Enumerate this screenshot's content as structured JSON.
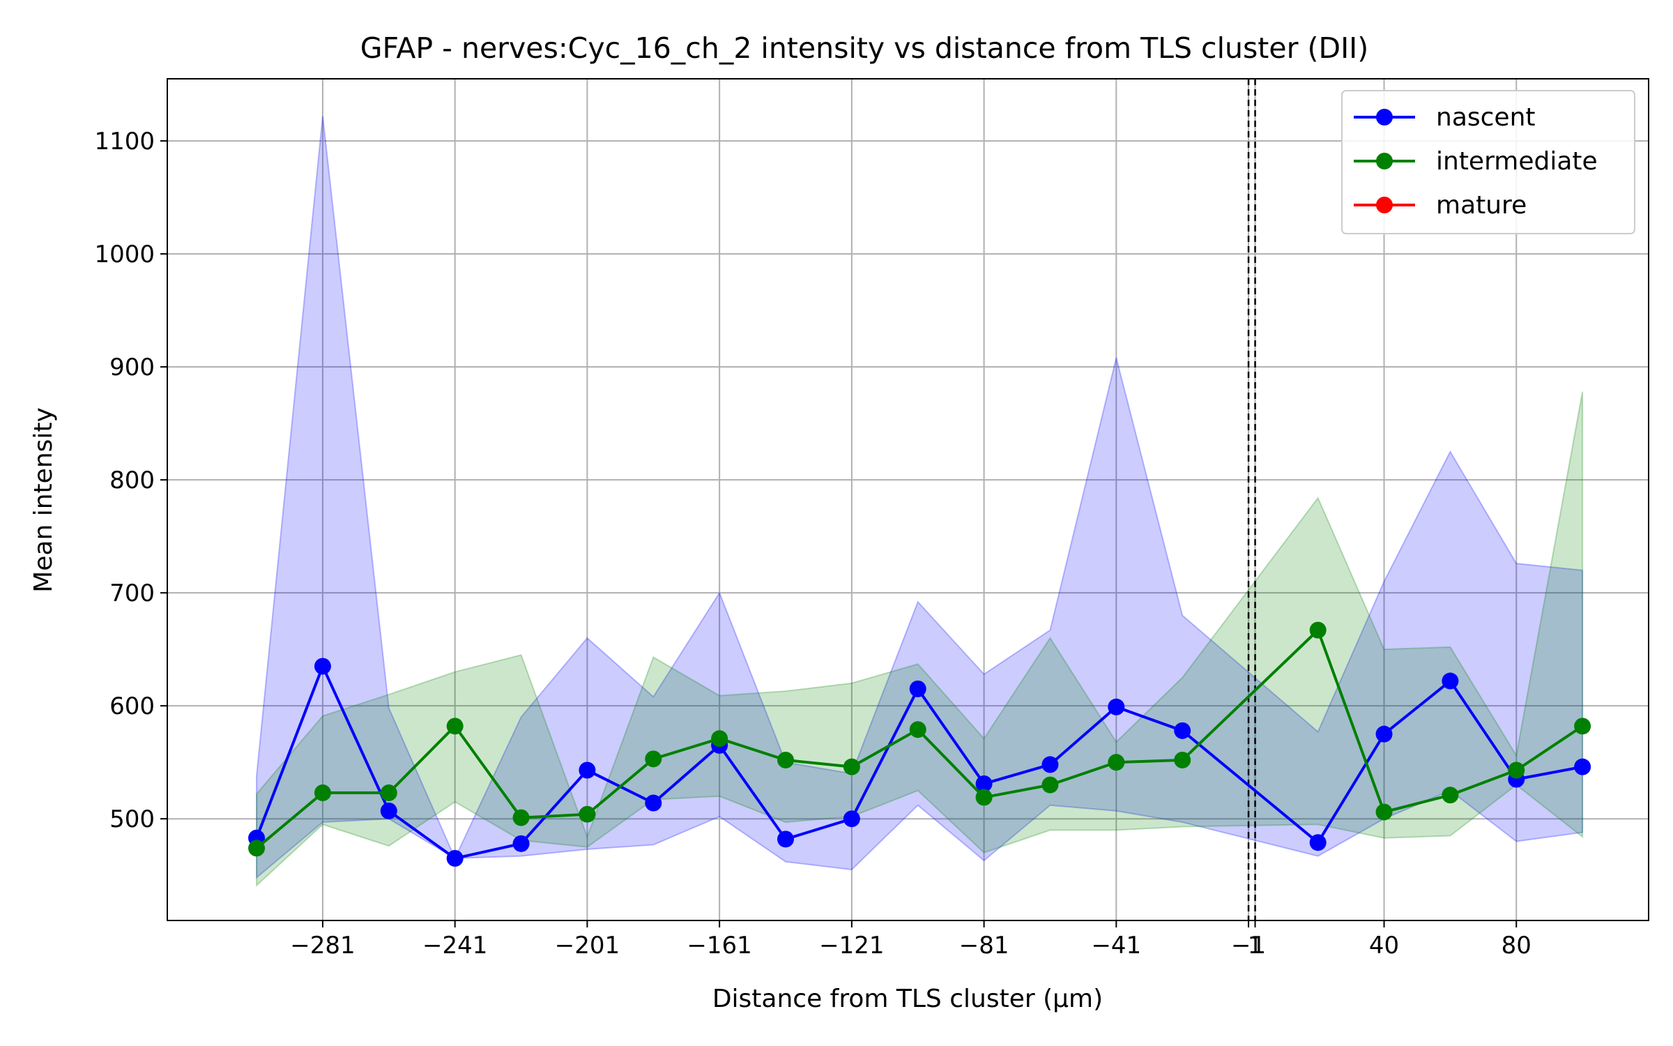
{
  "chart_data": {
    "type": "line",
    "title": "GFAP - nerves:Cyc_16_ch_2 intensity vs distance from TLS cluster (DII)",
    "xlabel": "Distance from TLS cluster (μm)",
    "ylabel": "Mean intensity",
    "xlim": [
      -328,
      120
    ],
    "ylim": [
      410,
      1155
    ],
    "xticks": [
      -281,
      -241,
      -201,
      -161,
      -121,
      -81,
      -41,
      -1,
      1,
      40,
      80
    ],
    "xtick_labels": [
      "−281",
      "−241",
      "−201",
      "−161",
      "−121",
      "−81",
      "−41",
      "−1",
      "1",
      "40",
      "80"
    ],
    "yticks": [
      500,
      600,
      700,
      800,
      900,
      1000,
      1100
    ],
    "ytick_labels": [
      "500",
      "600",
      "700",
      "800",
      "900",
      "1000",
      "1100"
    ],
    "grid": true,
    "legend_position": "top-right",
    "reference_lines": [
      -1,
      1
    ],
    "series": [
      {
        "name": "nascent",
        "color": "#0000ff",
        "x": [
          -301,
          -281,
          -261,
          -241,
          -221,
          -201,
          -181,
          -161,
          -141,
          -121,
          -101,
          -81,
          -61,
          -41,
          -21,
          20,
          40,
          60,
          80,
          100
        ],
        "y": [
          483,
          635,
          507,
          465,
          478,
          543,
          514,
          565,
          482,
          500,
          615,
          531,
          548,
          599,
          578,
          479,
          575,
          622,
          535,
          546
        ],
        "upper": [
          538,
          1122,
          598,
          465,
          590,
          660,
          608,
          700,
          550,
          540,
          692,
          628,
          667,
          908,
          680,
          577,
          710,
          825,
          726,
          720
        ],
        "lower": [
          448,
          497,
          500,
          465,
          467,
          473,
          477,
          502,
          462,
          455,
          512,
          463,
          512,
          507,
          497,
          467,
          500,
          525,
          480,
          488
        ]
      },
      {
        "name": "intermediate",
        "color": "#008000",
        "x": [
          -301,
          -281,
          -261,
          -241,
          -221,
          -201,
          -181,
          -161,
          -141,
          -121,
          -101,
          -81,
          -61,
          -41,
          -21,
          20,
          40,
          60,
          80,
          100
        ],
        "y": [
          474,
          523,
          523,
          582,
          501,
          504,
          553,
          571,
          552,
          546,
          579,
          519,
          530,
          550,
          552,
          667,
          506,
          521,
          543,
          582
        ],
        "upper": [
          522,
          591,
          610,
          630,
          645,
          484,
          643,
          609,
          613,
          620,
          637,
          571,
          660,
          568,
          625,
          784,
          650,
          652,
          556,
          878
        ],
        "lower": [
          441,
          495,
          476,
          515,
          481,
          475,
          517,
          520,
          497,
          502,
          525,
          470,
          490,
          490,
          493,
          495,
          483,
          485,
          530,
          484
        ]
      },
      {
        "name": "mature",
        "color": "#ff0000",
        "x": [],
        "y": []
      }
    ]
  }
}
